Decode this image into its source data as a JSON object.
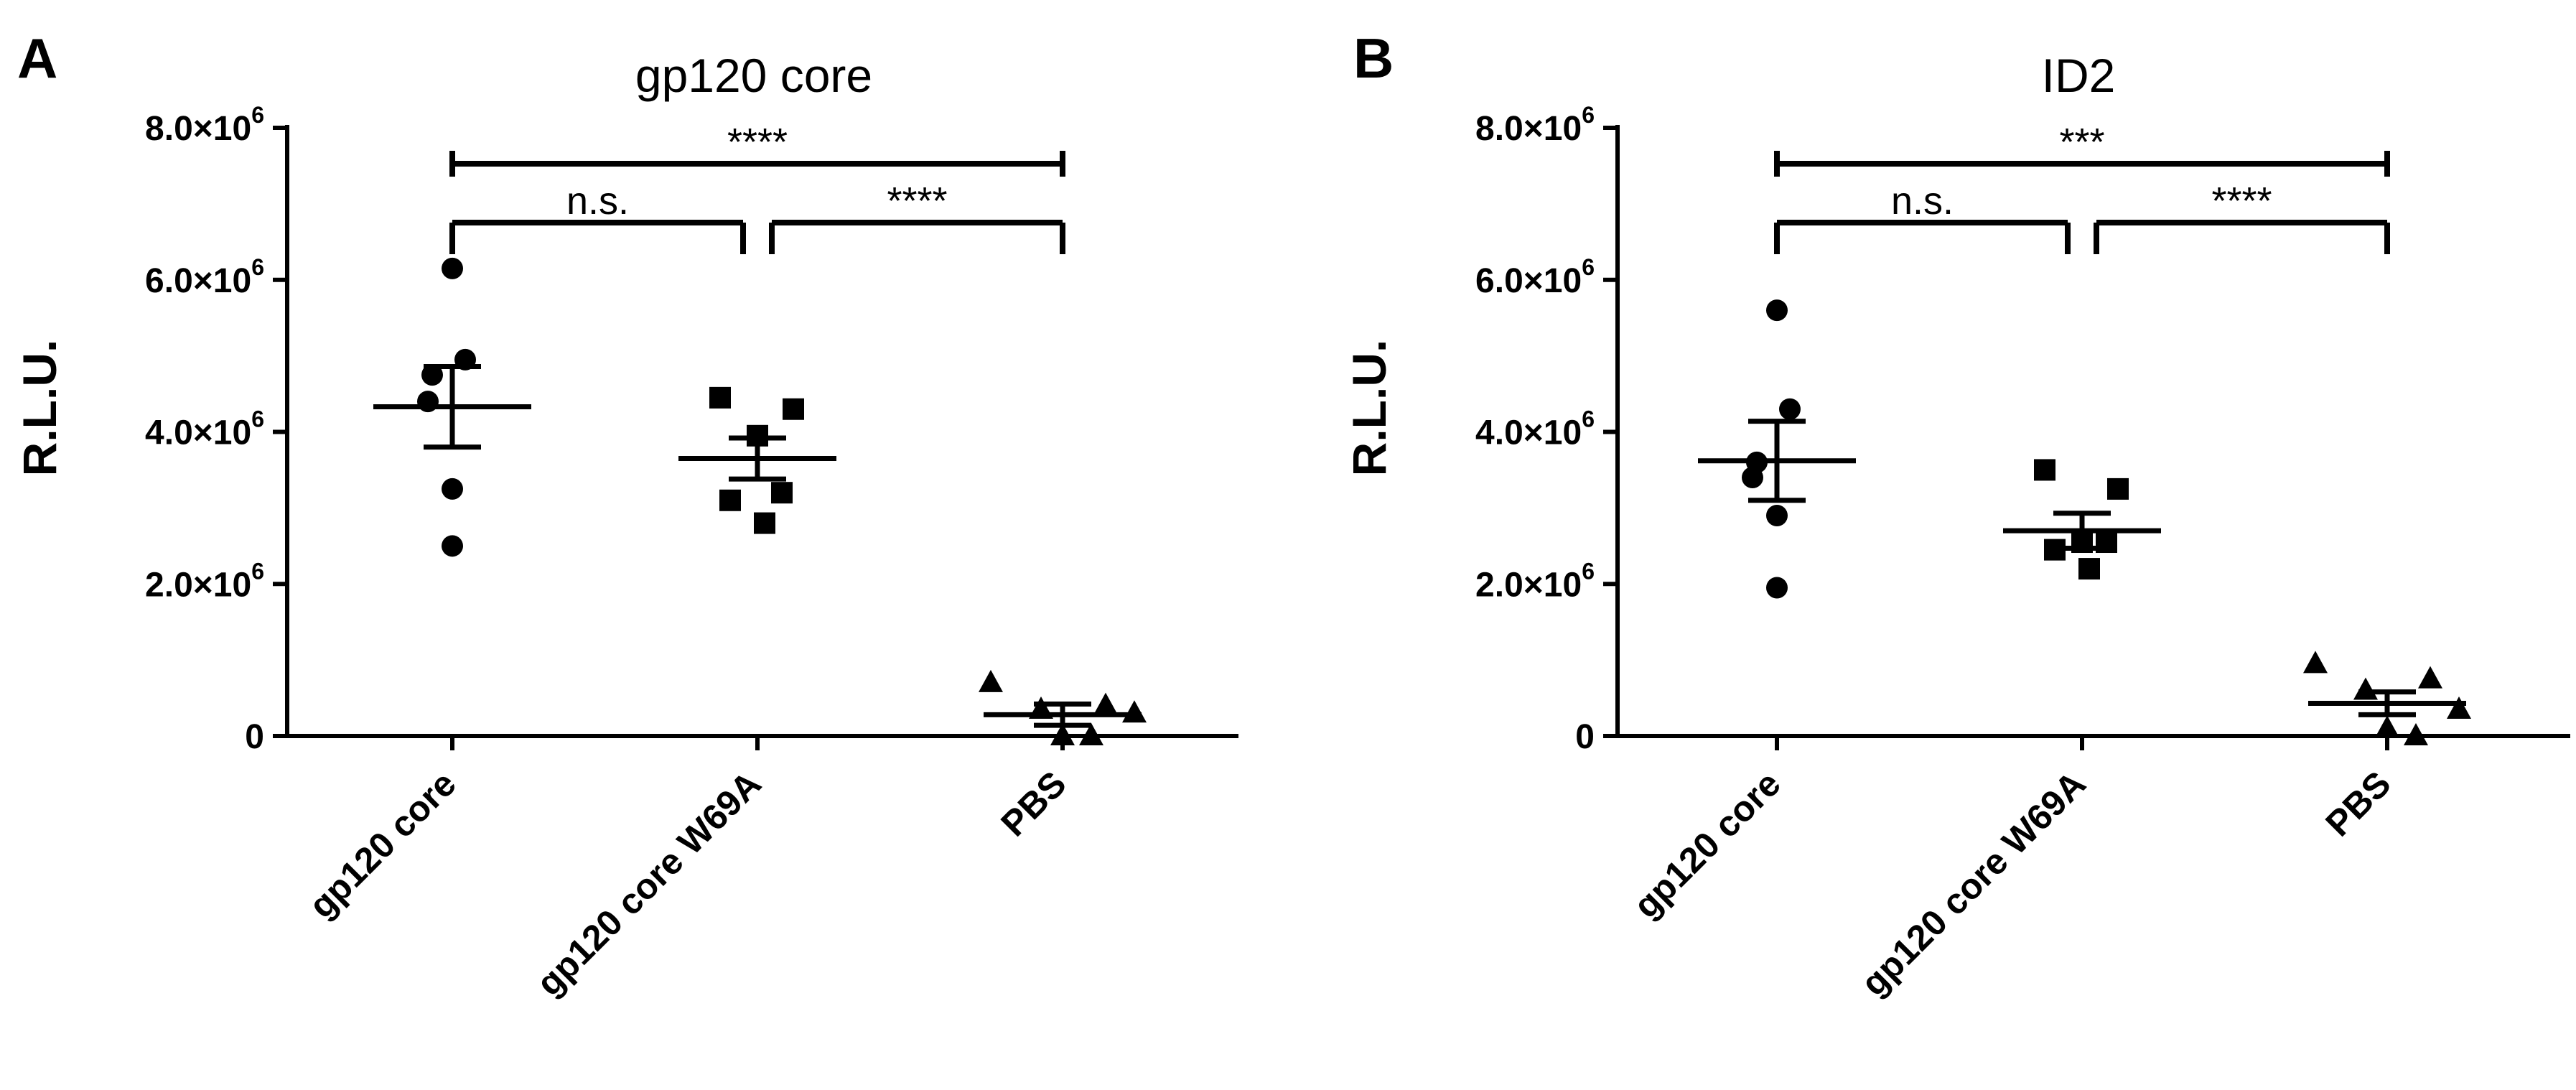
{
  "panels": [
    {
      "letter": "A",
      "title": "gp120 core"
    },
    {
      "letter": "B",
      "title": "ID2"
    }
  ],
  "chart_data": [
    {
      "type": "scatter",
      "title": "gp120 core",
      "panel_label": "A",
      "xlabel": "",
      "ylabel": "R.L.U.",
      "categories": [
        "gp120 core",
        "gp120 core W69A",
        "PBS"
      ],
      "ylim": [
        0,
        8000000
      ],
      "yticks": [
        {
          "value": 0,
          "label": "0"
        },
        {
          "value": 2000000,
          "label": "2.0×10",
          "exp": "6"
        },
        {
          "value": 4000000,
          "label": "4.0×10",
          "exp": "6"
        },
        {
          "value": 6000000,
          "label": "6.0×10",
          "exp": "6"
        },
        {
          "value": 8000000,
          "label": "8.0×10",
          "exp": "6"
        }
      ],
      "series": [
        {
          "name": "gp120 core",
          "marker": "circle",
          "values": [
            6150000,
            4950000,
            4750000,
            4400000,
            3250000,
            2500000
          ],
          "mean": 4330000,
          "sem_low": 3800000,
          "sem_high": 4860000
        },
        {
          "name": "gp120 core W69A",
          "marker": "square",
          "values": [
            4450000,
            4300000,
            3950000,
            3200000,
            3100000,
            2800000
          ],
          "mean": 3650000,
          "sem_low": 3380000,
          "sem_high": 3920000
        },
        {
          "name": "PBS",
          "marker": "triangle",
          "values": [
            700000,
            400000,
            350000,
            300000,
            0,
            0
          ],
          "mean": 280000,
          "sem_low": 140000,
          "sem_high": 420000
        }
      ],
      "comparisons": [
        {
          "from": "gp120 core",
          "to": "PBS",
          "label": "****"
        },
        {
          "from": "gp120 core",
          "to": "gp120 core W69A",
          "label": "n.s."
        },
        {
          "from": "gp120 core W69A",
          "to": "PBS",
          "label": "****"
        }
      ]
    },
    {
      "type": "scatter",
      "title": "ID2",
      "panel_label": "B",
      "xlabel": "",
      "ylabel": "R.L.U.",
      "categories": [
        "gp120 core",
        "gp120 core W69A",
        "PBS"
      ],
      "ylim": [
        0,
        8000000
      ],
      "yticks": [
        {
          "value": 0,
          "label": "0"
        },
        {
          "value": 2000000,
          "label": "2.0×10",
          "exp": "6"
        },
        {
          "value": 4000000,
          "label": "4.0×10",
          "exp": "6"
        },
        {
          "value": 6000000,
          "label": "6.0×10",
          "exp": "6"
        },
        {
          "value": 8000000,
          "label": "8.0×10",
          "exp": "6"
        }
      ],
      "series": [
        {
          "name": "gp120 core",
          "marker": "circle",
          "values": [
            5600000,
            4300000,
            3600000,
            3400000,
            2900000,
            1950000
          ],
          "mean": 3620000,
          "sem_low": 3100000,
          "sem_high": 4140000
        },
        {
          "name": "gp120 core W69A",
          "marker": "square",
          "values": [
            3500000,
            3250000,
            2550000,
            2550000,
            2450000,
            2200000
          ],
          "mean": 2700000,
          "sem_low": 2470000,
          "sem_high": 2930000
        },
        {
          "name": "PBS",
          "marker": "triangle",
          "values": [
            950000,
            750000,
            600000,
            350000,
            100000,
            0
          ],
          "mean": 430000,
          "sem_low": 280000,
          "sem_high": 580000
        }
      ],
      "comparisons": [
        {
          "from": "gp120 core",
          "to": "PBS",
          "label": "***"
        },
        {
          "from": "gp120 core",
          "to": "gp120 core W69A",
          "label": "n.s."
        },
        {
          "from": "gp120 core W69A",
          "to": "PBS",
          "label": "****"
        }
      ]
    }
  ]
}
